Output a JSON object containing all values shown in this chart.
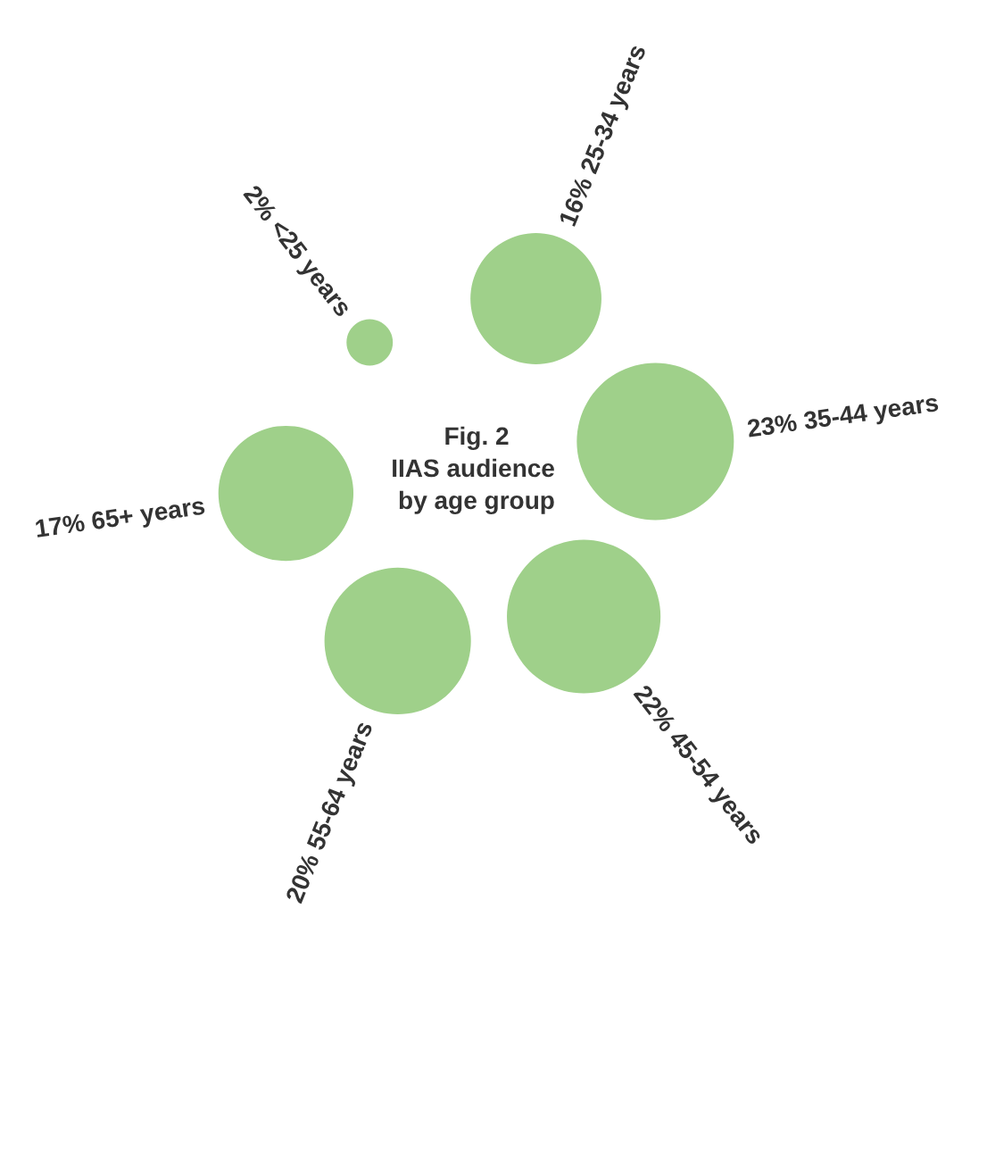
{
  "chart_data": {
    "type": "other",
    "title": "Fig. 2",
    "subtitle": "IIAS audience by age group",
    "categories": [
      "<25 years",
      "25-34 years",
      "35-44 years",
      "45-54 years",
      "55-64 years",
      "65+ years"
    ],
    "values": [
      2,
      16,
      23,
      22,
      20,
      17
    ],
    "value_labels": [
      "2%",
      "16%",
      "23%",
      "22%",
      "20%",
      "17%"
    ],
    "color": "#9fd08a"
  }
}
